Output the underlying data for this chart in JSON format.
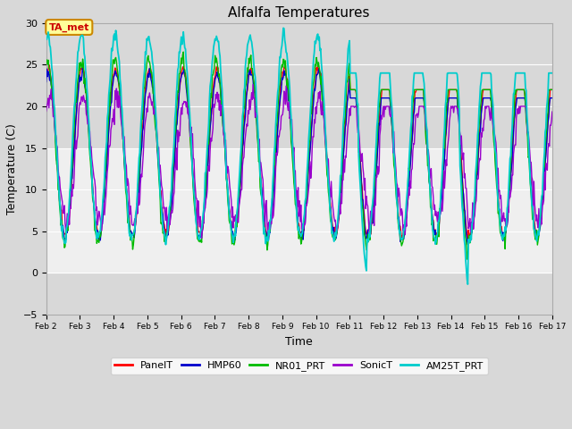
{
  "title": "Alfalfa Temperatures",
  "xlabel": "Time",
  "ylabel": "Temperature (C)",
  "ylim": [
    -5,
    30
  ],
  "xlim": [
    2,
    17
  ],
  "fig_bg": "#d8d8d8",
  "plot_bg": "#d8d8d8",
  "shaded_band": [
    0,
    15
  ],
  "shaded_color": "#e8e8e8",
  "series_colors": {
    "PanelT": "#ff0000",
    "HMP60": "#0000cc",
    "NR01_PRT": "#00bb00",
    "SonicT": "#9900cc",
    "AM25T_PRT": "#00cccc"
  },
  "annotation_text": "TA_met",
  "annotation_fg": "#cc0000",
  "annotation_bg": "#ffff99",
  "annotation_border": "#cc8800",
  "yticks": [
    -5,
    0,
    5,
    10,
    15,
    20,
    25,
    30
  ],
  "xtick_labels": [
    "Feb 2",
    "Feb 3",
    "Feb 4",
    "Feb 5",
    "Feb 6",
    "Feb 7",
    "Feb 8",
    "Feb 9",
    "Feb 10",
    "Feb 11",
    "Feb 12",
    "Feb 13",
    "Feb 14",
    "Feb 15",
    "Feb 16",
    "Feb 17"
  ],
  "grid_color": "#ffffff",
  "lw": 1.0
}
